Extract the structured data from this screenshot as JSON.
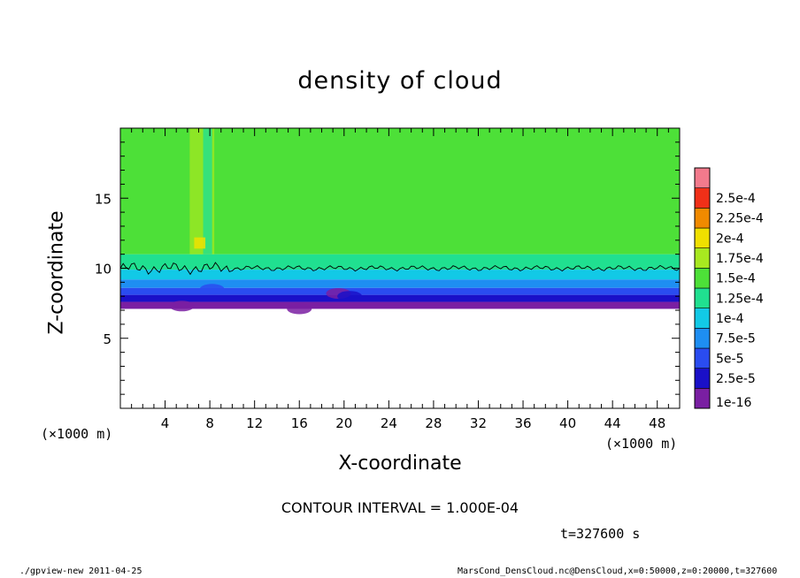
{
  "chart_data": {
    "type": "heatmap",
    "title": "density of cloud",
    "xlabel": "X-coordinate",
    "ylabel": "Z-coordinate",
    "x_unit": "(×1000 m)",
    "xlim": [
      0,
      50
    ],
    "ylim": [
      0,
      20
    ],
    "x_ticks": [
      "4",
      "8",
      "12",
      "16",
      "20",
      "24",
      "28",
      "32",
      "36",
      "40",
      "44",
      "48"
    ],
    "y_ticks": [
      "5",
      "10",
      "15"
    ],
    "colorbar": {
      "levels": [
        "1e-16",
        "2.5e-5",
        "5e-5",
        "7.5e-5",
        "1e-4",
        "1.25e-4",
        "1.5e-4",
        "1.75e-4",
        "2e-4",
        "2.25e-4",
        "2.5e-4"
      ],
      "colors": [
        "#7a1fa2",
        "#1a10c8",
        "#2a4cf0",
        "#1e8ef2",
        "#12c9e6",
        "#20e090",
        "#4de038",
        "#a8e820",
        "#f0e000",
        "#f08a00",
        "#f03018",
        "#f27a8c"
      ]
    },
    "bands": [
      {
        "z_from": 7.1,
        "z_to": 7.6,
        "color": "#7a1fa2"
      },
      {
        "z_from": 7.6,
        "z_to": 8.1,
        "color": "#1a10c8"
      },
      {
        "z_from": 8.1,
        "z_to": 8.6,
        "color": "#2a4cf0"
      },
      {
        "z_from": 8.6,
        "z_to": 9.2,
        "color": "#1e8ef2"
      },
      {
        "z_from": 9.2,
        "z_to": 9.9,
        "color": "#12c9e6"
      },
      {
        "z_from": 9.9,
        "z_to": 11.0,
        "color": "#20e090"
      },
      {
        "z_from": 11.0,
        "z_to": 20.0,
        "color": "#4de038"
      }
    ],
    "contour_level": "1e-4",
    "contour_z": 10.0
  },
  "contour_interval": "CONTOUR INTERVAL = 1.000E-04",
  "time": "t=327600 s",
  "footer_left": "./gpview-new  2011-04-25",
  "footer_right": "MarsCond_DensCloud.nc@DensCloud,x=0:50000,z=0:20000,t=327600"
}
